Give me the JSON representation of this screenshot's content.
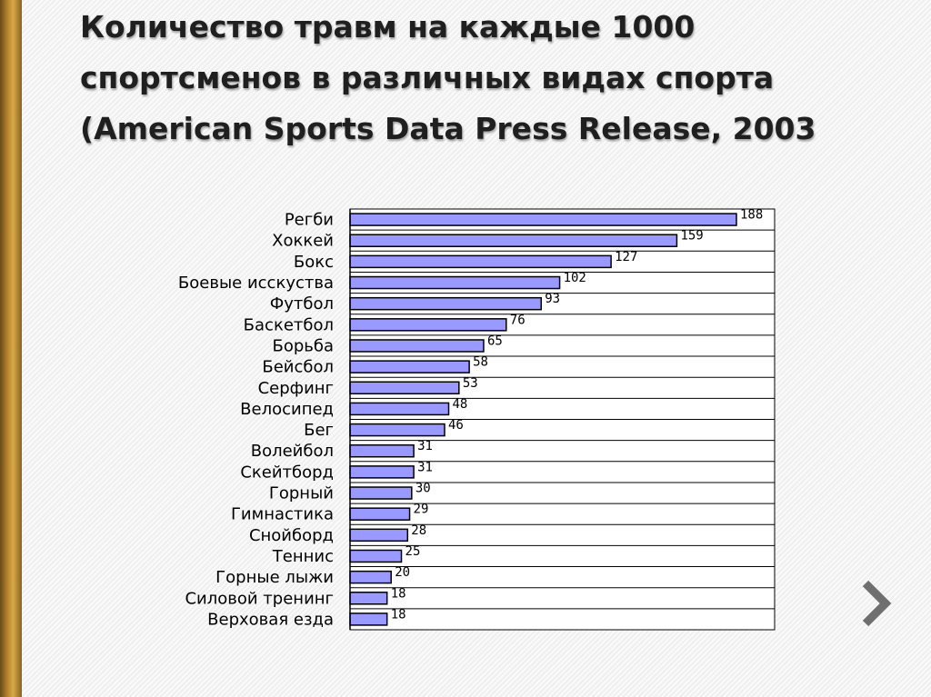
{
  "slide": {
    "title_lines": [
      "Количество травм на каждые 1000",
      "спортсменов в различных видах спорта",
      "(American Sports Data Press Release, 2003"
    ],
    "next_icon": "chevron-right-icon"
  },
  "colors": {
    "bar_fill": "#9999ff",
    "bar_stroke": "#000000",
    "grid": "#000000",
    "plot_bg": "#ffffff",
    "accent_bar": "#b5842f",
    "arrow": "#6f6f6f"
  },
  "chart_data": {
    "type": "bar",
    "orientation": "horizontal",
    "title": "",
    "xlabel": "",
    "ylabel": "",
    "xlim": [
      0,
      210
    ],
    "grid": true,
    "data_labels": true,
    "categories": [
      "Регби",
      "Хоккей",
      "Бокс",
      "Боевые исскуства",
      "Футбол",
      "Баскетбол",
      "Борьба",
      "Бейсбол",
      "Серфинг",
      "Велосипед",
      "Бег",
      "Волейбол",
      "Скейтборд",
      "Горный",
      "Гимнастика",
      "Снойборд",
      "Теннис",
      "Горные лыжи",
      "Силовой тренинг",
      "Верховая езда"
    ],
    "values": [
      188,
      159,
      127,
      102,
      93,
      76,
      65,
      58,
      53,
      48,
      46,
      31,
      31,
      30,
      29,
      28,
      25,
      20,
      18,
      18
    ]
  }
}
